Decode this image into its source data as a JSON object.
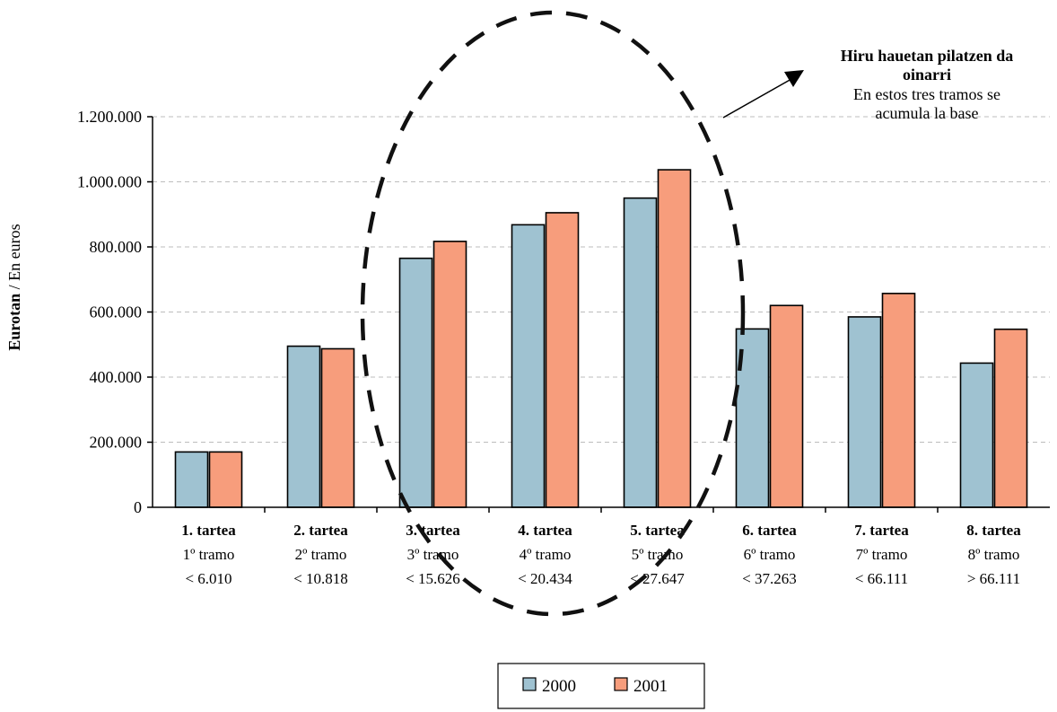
{
  "chart_data": {
    "type": "bar",
    "categories": [
      {
        "label": "1. tartea",
        "sub": "1º tramo",
        "range": "< 6.010"
      },
      {
        "label": "2. tartea",
        "sub": "2º tramo",
        "range": "< 10.818"
      },
      {
        "label": "3. tartea",
        "sub": "3º tramo",
        "range": "< 15.626"
      },
      {
        "label": "4. tartea",
        "sub": "4º tramo",
        "range": "< 20.434"
      },
      {
        "label": "5. tartea",
        "sub": "5º tramo",
        "range": "< 27.647"
      },
      {
        "label": "6. tartea",
        "sub": "6º tramo",
        "range": "< 37.263"
      },
      {
        "label": "7. tartea",
        "sub": "7º tramo",
        "range": "< 66.111"
      },
      {
        "label": "8. tartea",
        "sub": "8º tramo",
        "range": "> 66.111"
      }
    ],
    "series": [
      {
        "name": "2000",
        "color": "#9fc2d1",
        "values": [
          170000,
          495000,
          765000,
          868000,
          950000,
          548000,
          585000,
          443000
        ]
      },
      {
        "name": "2001",
        "color": "#f79d7c",
        "values": [
          170000,
          487000,
          817000,
          905000,
          1037000,
          620000,
          657000,
          547000
        ]
      }
    ],
    "ylim": [
      0,
      1200000
    ],
    "yticks": [
      {
        "value": 0,
        "label": "0"
      },
      {
        "value": 200000,
        "label": "200.000"
      },
      {
        "value": 400000,
        "label": "400.000"
      },
      {
        "value": 600000,
        "label": "600.000"
      },
      {
        "value": 800000,
        "label": "800.000"
      },
      {
        "value": 1000000,
        "label": "1.000.000"
      },
      {
        "value": 1200000,
        "label": "1.200.000"
      }
    ],
    "ylabel_bold": "Eurotan",
    "ylabel_rest": " / En euros",
    "grid": true,
    "legend_position": "bottom-center",
    "annotation": {
      "bold_lines": [
        "Hiru hauetan pilatzen da",
        "oinarri"
      ],
      "lines": [
        "En estos tres tramos se",
        "acumula la base"
      ]
    }
  }
}
